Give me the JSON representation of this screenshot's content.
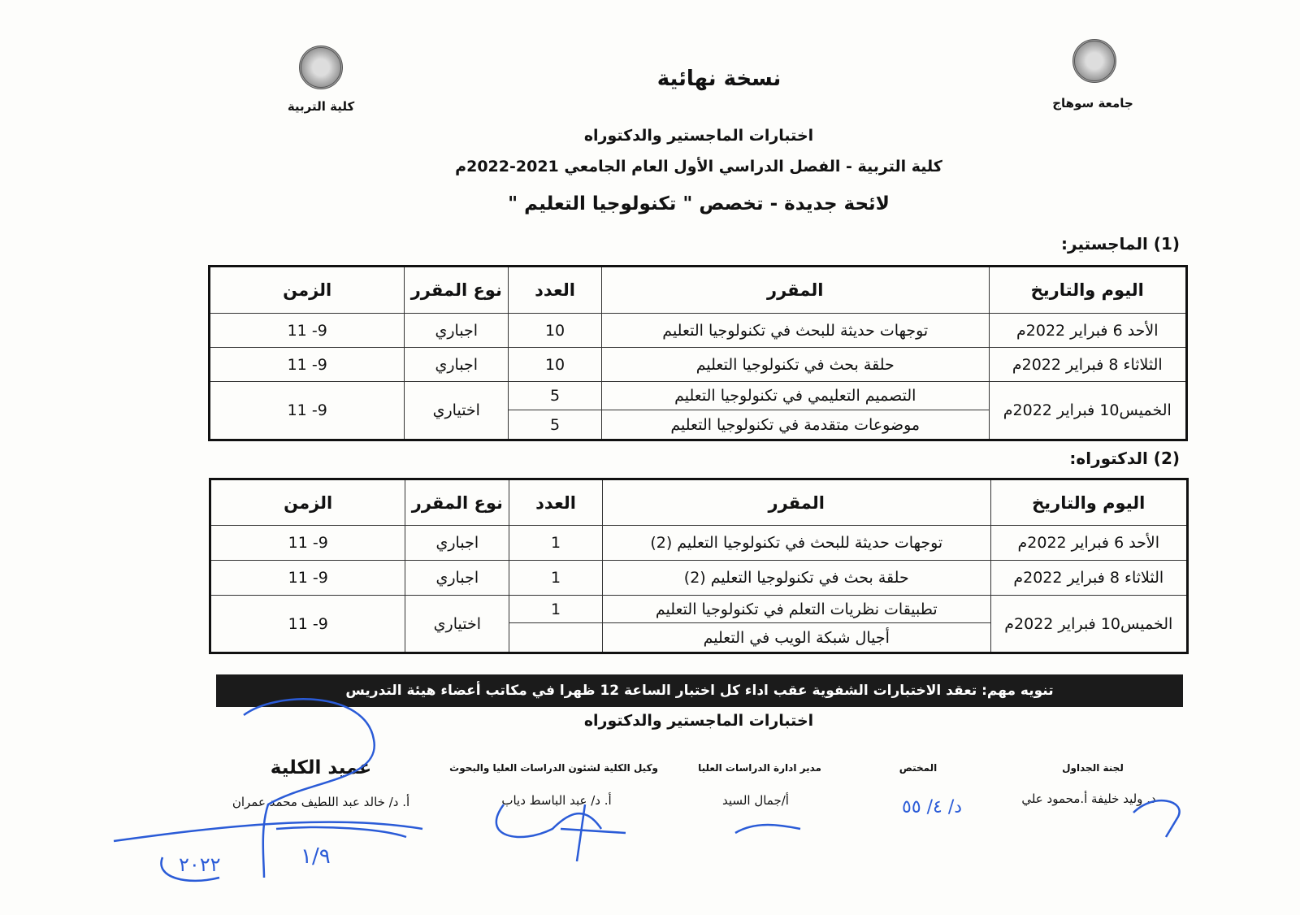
{
  "header": {
    "left_label": "جامعة سوهاج",
    "right_label": "كلية التربية",
    "stamp": "نسخة نهائية",
    "title1": "اختبارات الماجستير والدكتوراه",
    "title2": "كلية التربية - الفصل الدراسي الأول العام الجامعي 2021-2022م",
    "title3": "لائحة جديدة - تخصص \" تكنولوجيا التعليم \""
  },
  "columns": [
    "اليوم والتاريخ",
    "المقرر",
    "العدد",
    "نوع المقرر",
    "الزمن"
  ],
  "masters": {
    "heading": "(1) الماجستير:",
    "rows": [
      {
        "date": "الأحد 6 فبراير 2022م",
        "course": "توجهات حديثة للبحث في تكنولوجيا التعليم",
        "count": "10",
        "type": "اجباري",
        "time": "9- 11"
      },
      {
        "date": "الثلاثاء 8 فبراير 2022م",
        "course": "حلقة بحث في تكنولوجيا التعليم",
        "count": "10",
        "type": "اجباري",
        "time": "9- 11"
      },
      {
        "date": "الخميس10 فبراير 2022م",
        "course": "التصميم التعليمي في تكنولوجيا التعليم",
        "count": "5",
        "type": "اختياري",
        "time": "9- 11",
        "course2": "موضوعات متقدمة في تكنولوجيا التعليم",
        "count2": "5"
      }
    ]
  },
  "doctorate": {
    "heading": "(2) الدكتوراه:",
    "rows": [
      {
        "date": "الأحد 6 فبراير 2022م",
        "course": "توجهات حديثة للبحث في تكنولوجيا التعليم (2)",
        "count": "1",
        "type": "اجباري",
        "time": "9- 11"
      },
      {
        "date": "الثلاثاء 8 فبراير 2022م",
        "course": "حلقة بحث في تكنولوجيا التعليم (2)",
        "count": "1",
        "type": "اجباري",
        "time": "9- 11"
      },
      {
        "date": "الخميس10 فبراير 2022م",
        "course": "تطبيقات نظريات التعلم في تكنولوجيا التعليم",
        "count": "1",
        "type": "اختياري",
        "time": "9- 11",
        "course2": "أجيال شبكة الويب في التعليم",
        "count2": ""
      }
    ]
  },
  "notice": "تنويه مهم: تعقد الاختبارات الشفوية عقب اداء كل اختبار الساعة 12 ظهرا في مكاتب أعضاء هيئة التدريس",
  "footer_title": "اختبارات الماجستير والدكتوراه",
  "signatures": [
    {
      "role": "لجنة الجداول",
      "name": "د. وليد خليفة   أ.محمود علي"
    },
    {
      "role": "المختص",
      "name": ""
    },
    {
      "role": "مدير ادارة الدراسات العليا",
      "name": "أ/جمال السيد"
    },
    {
      "role": "وكيل الكلية لشئون الدراسات العليا والبحوث",
      "name": "أ. د/ عبد الباسط دياب"
    },
    {
      "role": "عميد الكلية",
      "name": "أ. د/ خالد عبد اللطيف محمد عمران"
    }
  ],
  "handwritten": {
    "date_mark": "١/٩",
    "year_mark": "٢٠٢٢"
  },
  "colors": {
    "ink": "#2a5bd7",
    "banner": "#1b1b1b"
  }
}
